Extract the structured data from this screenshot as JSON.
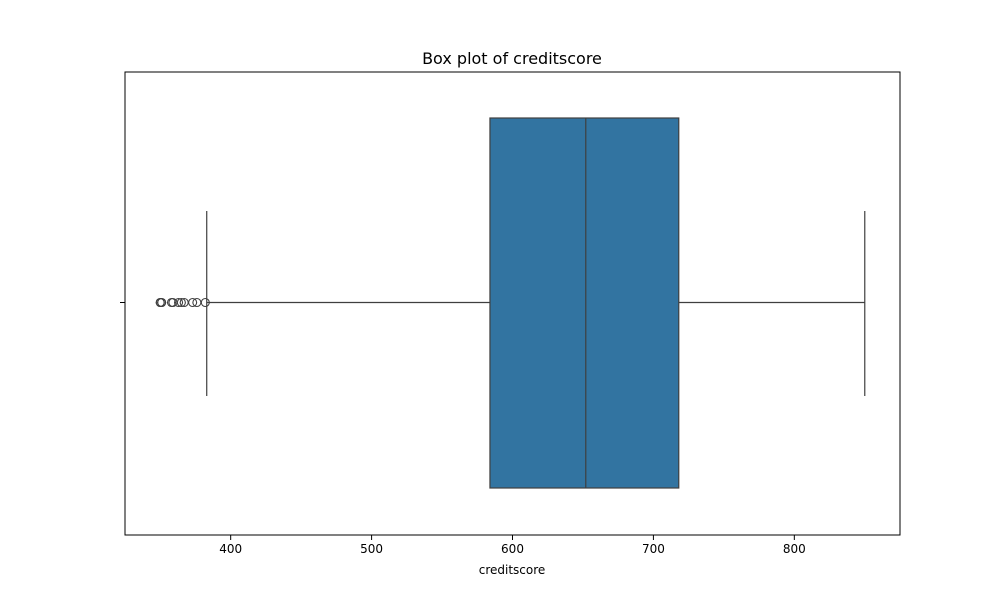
{
  "chart_data": {
    "type": "box",
    "title": "Box plot of creditscore",
    "xlabel": "creditscore",
    "ylabel": "",
    "xlim": [
      325,
      875
    ],
    "xticks": [
      400,
      500,
      600,
      700,
      800
    ],
    "grid": false,
    "orientation": "horizontal",
    "box": {
      "whisker_low": 383,
      "q1": 584,
      "median": 652,
      "q3": 718,
      "whisker_high": 850
    },
    "outliers": [
      350,
      350,
      351,
      351,
      358,
      359,
      363,
      365,
      367,
      373,
      376,
      382
    ],
    "colors": {
      "box_fill": "#3274a1",
      "line": "#3f3f3f",
      "frame": "#000000"
    }
  }
}
